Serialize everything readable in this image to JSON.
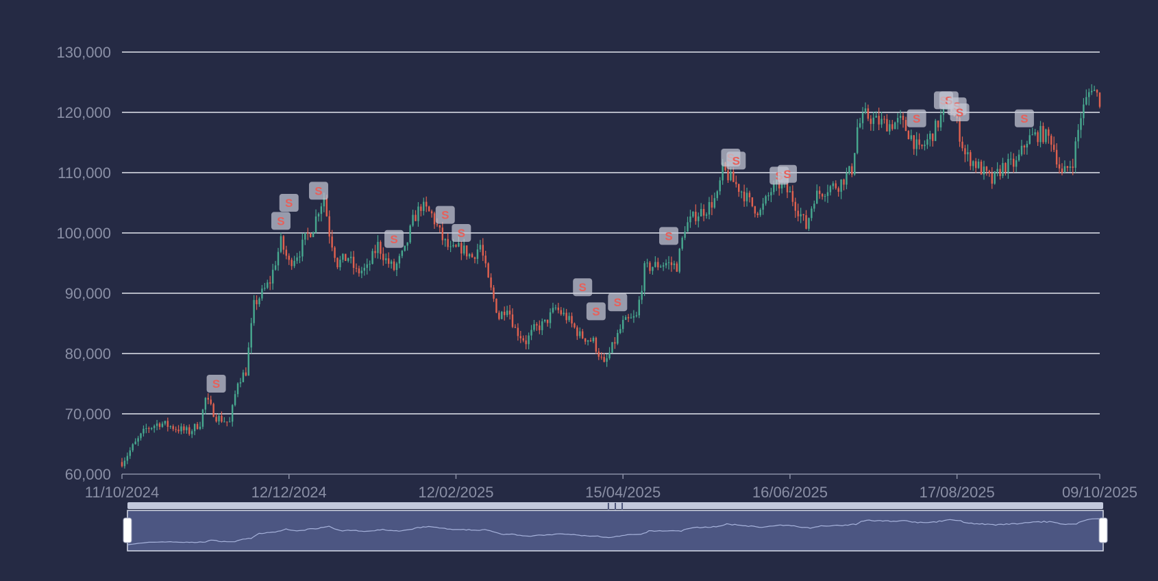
{
  "chart_data": {
    "type": "candlestick",
    "title": "",
    "xlabel": "",
    "ylabel": "",
    "ylim": [
      60000,
      130000
    ],
    "xlim": [
      "11/10/2024",
      "09/10/2025"
    ],
    "y_ticks": [
      "60,000",
      "70,000",
      "80,000",
      "90,000",
      "100,000",
      "110,000",
      "120,000",
      "130,000"
    ],
    "y_tick_values": [
      60000,
      70000,
      80000,
      90000,
      100000,
      110000,
      120000,
      130000
    ],
    "x_ticks": [
      "11/10/2024",
      "12/12/2024",
      "12/02/2025",
      "15/04/2025",
      "16/06/2025",
      "17/08/2025",
      "09/10/2025"
    ],
    "grid": true,
    "up_color": "#47a88f",
    "down_color": "#e0614f",
    "price_path": [
      [
        "11/10/2024",
        62000
      ],
      [
        "15/10/2024",
        64500
      ],
      [
        "20/10/2024",
        67500
      ],
      [
        "25/10/2024",
        68500
      ],
      [
        "01/11/2024",
        67500
      ],
      [
        "05/11/2024",
        67000
      ],
      [
        "09/11/2024",
        68500
      ],
      [
        "11/11/2024",
        72500
      ],
      [
        "15/11/2024",
        69500
      ],
      [
        "20/11/2024",
        68500
      ],
      [
        "23/11/2024",
        75500
      ],
      [
        "26/11/2024",
        77000
      ],
      [
        "29/11/2024",
        88000
      ],
      [
        "02/12/2024",
        90000
      ],
      [
        "05/12/2024",
        92000
      ],
      [
        "09/12/2024",
        98500
      ],
      [
        "12/12/2024",
        95000
      ],
      [
        "16/12/2024",
        97000
      ],
      [
        "18/12/2024",
        99000
      ],
      [
        "21/12/2024",
        101000
      ],
      [
        "23/12/2024",
        104000
      ],
      [
        "25/12/2024",
        106000
      ],
      [
        "27/12/2024",
        100000
      ],
      [
        "30/12/2024",
        95000
      ],
      [
        "03/01/2025",
        96000
      ],
      [
        "06/01/2025",
        93500
      ],
      [
        "10/01/2025",
        94000
      ],
      [
        "14/01/2025",
        98000
      ],
      [
        "17/01/2025",
        95500
      ],
      [
        "20/01/2025",
        94000
      ],
      [
        "24/01/2025",
        97000
      ],
      [
        "27/01/2025",
        102000
      ],
      [
        "30/01/2025",
        104500
      ],
      [
        "03/02/2025",
        103000
      ],
      [
        "07/02/2025",
        99000
      ],
      [
        "10/02/2025",
        97000
      ],
      [
        "14/02/2025",
        97500
      ],
      [
        "18/02/2025",
        96000
      ],
      [
        "21/02/2025",
        98000
      ],
      [
        "24/02/2025",
        92000
      ],
      [
        "28/02/2025",
        86000
      ],
      [
        "03/03/2025",
        88000
      ],
      [
        "06/03/2025",
        84000
      ],
      [
        "10/03/2025",
        82000
      ],
      [
        "13/03/2025",
        84000
      ],
      [
        "17/03/2025",
        85000
      ],
      [
        "21/03/2025",
        87500
      ],
      [
        "25/03/2025",
        86000
      ],
      [
        "30/03/2025",
        83000
      ],
      [
        "04/04/2025",
        82000
      ],
      [
        "08/04/2025",
        78000
      ],
      [
        "12/04/2025",
        82000
      ],
      [
        "15/04/2025",
        85000
      ],
      [
        "20/04/2025",
        86000
      ],
      [
        "23/04/2025",
        94000
      ],
      [
        "26/04/2025",
        94500
      ],
      [
        "01/05/2025",
        95000
      ],
      [
        "05/05/2025",
        94500
      ],
      [
        "08/05/2025",
        101000
      ],
      [
        "12/05/2025",
        103000
      ],
      [
        "16/05/2025",
        104000
      ],
      [
        "20/05/2025",
        106000
      ],
      [
        "22/05/2025",
        110500
      ],
      [
        "26/05/2025",
        108500
      ],
      [
        "29/05/2025",
        107000
      ],
      [
        "02/06/2025",
        104500
      ],
      [
        "05/06/2025",
        103500
      ],
      [
        "09/06/2025",
        107000
      ],
      [
        "12/06/2025",
        108000
      ],
      [
        "16/06/2025",
        106500
      ],
      [
        "20/06/2025",
        103000
      ],
      [
        "22/06/2025",
        101000
      ],
      [
        "25/06/2025",
        106000
      ],
      [
        "30/06/2025",
        107500
      ],
      [
        "04/07/2025",
        108000
      ],
      [
        "09/07/2025",
        110500
      ],
      [
        "11/07/2025",
        117500
      ],
      [
        "14/07/2025",
        119500
      ],
      [
        "18/07/2025",
        118500
      ],
      [
        "23/07/2025",
        118000
      ],
      [
        "27/07/2025",
        118500
      ],
      [
        "31/07/2025",
        116000
      ],
      [
        "03/08/2025",
        113500
      ],
      [
        "08/08/2025",
        116500
      ],
      [
        "12/08/2025",
        120000
      ],
      [
        "14/08/2025",
        121500
      ],
      [
        "17/08/2025",
        118000
      ],
      [
        "20/08/2025",
        113000
      ],
      [
        "25/08/2025",
        111000
      ],
      [
        "30/08/2025",
        108500
      ],
      [
        "03/09/2025",
        111000
      ],
      [
        "08/09/2025",
        111500
      ],
      [
        "12/09/2025",
        115500
      ],
      [
        "17/09/2025",
        116500
      ],
      [
        "21/09/2025",
        115500
      ],
      [
        "25/09/2025",
        109500
      ],
      [
        "29/09/2025",
        112000
      ],
      [
        "02/10/2025",
        119500
      ],
      [
        "06/10/2025",
        124500
      ],
      [
        "09/10/2025",
        122000
      ]
    ],
    "sell_markers": [
      [
        "15/11/2024",
        75000
      ],
      [
        "09/12/2024",
        102000
      ],
      [
        "12/12/2024",
        105000
      ],
      [
        "23/12/2024",
        107000
      ],
      [
        "20/01/2025",
        99000
      ],
      [
        "08/02/2025",
        103000
      ],
      [
        "14/02/2025",
        100000
      ],
      [
        "31/03/2025",
        91000
      ],
      [
        "05/04/2025",
        87000
      ],
      [
        "13/04/2025",
        88500
      ],
      [
        "02/05/2025",
        99500
      ],
      [
        "25/05/2025",
        112500
      ],
      [
        "27/05/2025",
        112000
      ],
      [
        "12/06/2025",
        109500
      ],
      [
        "15/06/2025",
        109800
      ],
      [
        "02/08/2025",
        119000
      ],
      [
        "12/08/2025",
        122000
      ],
      [
        "14/08/2025",
        122000
      ],
      [
        "17/08/2025",
        121000
      ],
      [
        "18/08/2025",
        120000
      ],
      [
        "11/09/2025",
        119000
      ]
    ],
    "marker_label": "S",
    "zoom_range": [
      0,
      100
    ]
  }
}
